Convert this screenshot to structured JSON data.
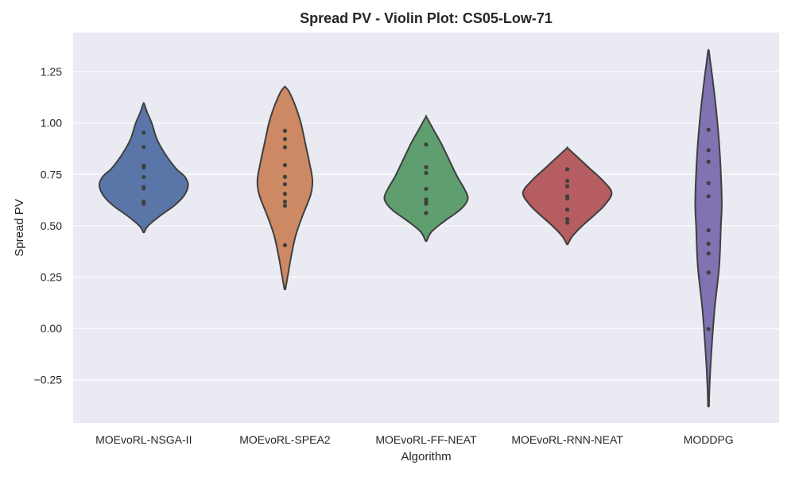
{
  "chart_data": {
    "type": "violin",
    "title": "Spread PV - Violin Plot: CS05-Low-71",
    "xlabel": "Algorithm",
    "ylabel": "Spread PV",
    "ylim": [
      -0.46,
      1.44
    ],
    "yticks": [
      -0.25,
      0.0,
      0.25,
      0.5,
      0.75,
      1.0,
      1.25
    ],
    "ytick_labels": [
      "−0.25",
      "0.00",
      "0.25",
      "0.50",
      "0.75",
      "1.00",
      "1.25"
    ],
    "grid": true,
    "legend": "none",
    "background": "#eaeaf2",
    "categories": [
      "MOEvoRL-NSGA-II",
      "MOEvoRL-SPEA2",
      "MOEvoRL-FF-NEAT",
      "MOEvoRL-RNN-NEAT",
      "MODDPG"
    ],
    "series": [
      {
        "color": "#5a76a8",
        "points": [
          0.953,
          0.883,
          0.792,
          0.783,
          0.737,
          0.688,
          0.682,
          0.618,
          0.607
        ],
        "outline": [
          [
            0.468,
            0.01
          ],
          [
            0.5,
            0.1
          ],
          [
            0.55,
            0.38
          ],
          [
            0.6,
            0.7
          ],
          [
            0.65,
            0.92
          ],
          [
            0.7,
            1.0
          ],
          [
            0.74,
            0.92
          ],
          [
            0.78,
            0.72
          ],
          [
            0.85,
            0.48
          ],
          [
            0.92,
            0.3
          ],
          [
            1.0,
            0.18
          ],
          [
            1.05,
            0.08
          ],
          [
            1.093,
            0.01
          ]
        ]
      },
      {
        "color": "#cc8963",
        "points": [
          0.962,
          0.922,
          0.882,
          0.795,
          0.738,
          0.702,
          0.655,
          0.617,
          0.597,
          0.405
        ],
        "outline": [
          [
            0.19,
            0.01
          ],
          [
            0.25,
            0.06
          ],
          [
            0.35,
            0.14
          ],
          [
            0.45,
            0.24
          ],
          [
            0.55,
            0.4
          ],
          [
            0.65,
            0.58
          ],
          [
            0.72,
            0.62
          ],
          [
            0.8,
            0.56
          ],
          [
            0.9,
            0.46
          ],
          [
            1.0,
            0.36
          ],
          [
            1.08,
            0.24
          ],
          [
            1.15,
            0.1
          ],
          [
            1.175,
            0.01
          ]
        ]
      },
      {
        "color": "#5f9e6e",
        "points": [
          0.895,
          0.785,
          0.757,
          0.679,
          0.628,
          0.617,
          0.607,
          0.562
        ],
        "outline": [
          [
            0.425,
            0.01
          ],
          [
            0.47,
            0.12
          ],
          [
            0.52,
            0.4
          ],
          [
            0.58,
            0.78
          ],
          [
            0.63,
            0.94
          ],
          [
            0.68,
            0.86
          ],
          [
            0.74,
            0.7
          ],
          [
            0.82,
            0.52
          ],
          [
            0.9,
            0.34
          ],
          [
            0.97,
            0.16
          ],
          [
            1.028,
            0.01
          ]
        ]
      },
      {
        "color": "#b55d60",
        "points": [
          0.775,
          0.718,
          0.692,
          0.643,
          0.633,
          0.578,
          0.532,
          0.515
        ],
        "outline": [
          [
            0.41,
            0.01
          ],
          [
            0.45,
            0.12
          ],
          [
            0.5,
            0.34
          ],
          [
            0.55,
            0.6
          ],
          [
            0.6,
            0.84
          ],
          [
            0.66,
            1.0
          ],
          [
            0.72,
            0.8
          ],
          [
            0.78,
            0.5
          ],
          [
            0.84,
            0.2
          ],
          [
            0.877,
            0.01
          ]
        ]
      },
      {
        "color": "#8172b2",
        "points": [
          0.967,
          0.868,
          0.812,
          0.707,
          0.643,
          0.478,
          0.412,
          0.365,
          0.272,
          -0.003
        ],
        "outline": [
          [
            -0.38,
            0.01
          ],
          [
            -0.25,
            0.03
          ],
          [
            -0.1,
            0.07
          ],
          [
            0.1,
            0.14
          ],
          [
            0.3,
            0.24
          ],
          [
            0.5,
            0.28
          ],
          [
            0.6,
            0.3
          ],
          [
            0.75,
            0.28
          ],
          [
            0.9,
            0.24
          ],
          [
            1.05,
            0.18
          ],
          [
            1.2,
            0.1
          ],
          [
            1.3,
            0.04
          ],
          [
            1.35,
            0.01
          ]
        ]
      }
    ]
  }
}
